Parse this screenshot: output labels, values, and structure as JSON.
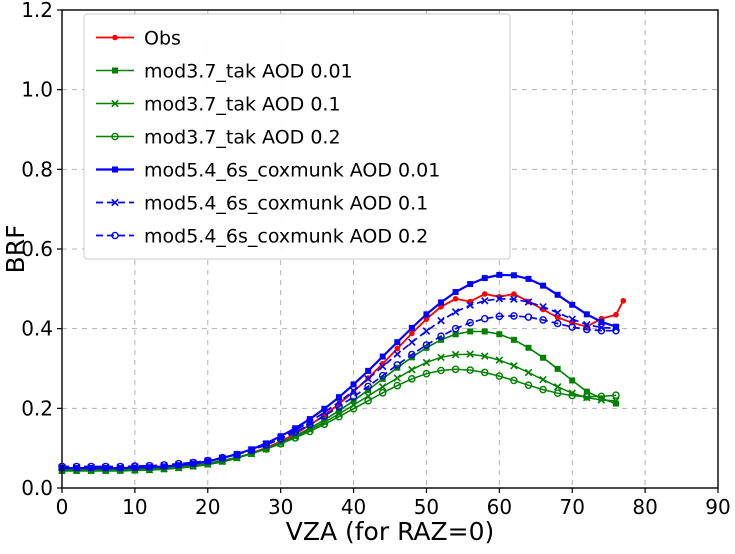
{
  "figure": {
    "background": "#ffffff"
  },
  "chart_data": {
    "type": "line",
    "title": "",
    "xlabel": "VZA (for RAZ=0)",
    "ylabel": "BRF",
    "xlim": [
      0,
      90
    ],
    "ylim": [
      0.0,
      1.2
    ],
    "xticks": [
      0,
      10,
      20,
      30,
      40,
      50,
      60,
      70,
      80,
      90
    ],
    "xtick_labels": [
      "0",
      "10",
      "20",
      "30",
      "40",
      "50",
      "60",
      "70",
      "80",
      "90"
    ],
    "yticks": [
      0.0,
      0.2,
      0.4,
      0.6,
      0.8,
      1.0,
      1.2
    ],
    "ytick_labels": [
      "0.0",
      "0.2",
      "0.4",
      "0.6",
      "0.8",
      "1.0",
      "1.2"
    ],
    "grid": {
      "on": true,
      "style": "dashed",
      "color": "#b3b3b3"
    },
    "legend": {
      "position": "upper-left",
      "border_color": "#cccccc",
      "background": "#ffffff"
    },
    "x_model": [
      0,
      2,
      4,
      6,
      8,
      10,
      12,
      14,
      16,
      18,
      20,
      22,
      24,
      26,
      28,
      30,
      32,
      34,
      36,
      38,
      40,
      42,
      44,
      46,
      48,
      50,
      52,
      54,
      56,
      58,
      60,
      62,
      64,
      66,
      68,
      70,
      72,
      74,
      76
    ],
    "x_obs": [
      0,
      2,
      4,
      6,
      8,
      10,
      12,
      14,
      16,
      18,
      20,
      22,
      24,
      26,
      28,
      30,
      32,
      34,
      36,
      38,
      40,
      42,
      44,
      46,
      48,
      50,
      52,
      54,
      56,
      58,
      60,
      62,
      64,
      66,
      68,
      70,
      72,
      74,
      76,
      77
    ],
    "series": [
      {
        "name": "Obs",
        "color": "#ff0000",
        "linestyle": "solid",
        "marker": "dot",
        "linewidth": 1.8,
        "x_key": "x_obs",
        "y": [
          0.048,
          0.048,
          0.047,
          0.047,
          0.047,
          0.047,
          0.048,
          0.049,
          0.051,
          0.054,
          0.059,
          0.066,
          0.075,
          0.087,
          0.101,
          0.117,
          0.136,
          0.158,
          0.183,
          0.211,
          0.242,
          0.276,
          0.312,
          0.35,
          0.388,
          0.424,
          0.455,
          0.475,
          0.468,
          0.487,
          0.48,
          0.487,
          0.468,
          0.448,
          0.428,
          0.415,
          0.405,
          0.425,
          0.435,
          0.47
        ]
      },
      {
        "name": "mod3.7_tak AOD 0.01",
        "color": "#008000",
        "linestyle": "solid",
        "marker": "square",
        "linewidth": 1.6,
        "x_key": "x_model",
        "y": [
          0.043,
          0.043,
          0.043,
          0.043,
          0.043,
          0.044,
          0.045,
          0.047,
          0.05,
          0.054,
          0.059,
          0.066,
          0.075,
          0.086,
          0.099,
          0.114,
          0.131,
          0.15,
          0.171,
          0.194,
          0.219,
          0.246,
          0.274,
          0.302,
          0.328,
          0.352,
          0.372,
          0.386,
          0.393,
          0.393,
          0.386,
          0.372,
          0.352,
          0.327,
          0.299,
          0.27,
          0.242,
          0.225,
          0.212
        ]
      },
      {
        "name": "mod3.7_tak AOD 0.1",
        "color": "#008000",
        "linestyle": "solid",
        "marker": "x",
        "linewidth": 1.5,
        "x_key": "x_model",
        "y": [
          0.044,
          0.044,
          0.044,
          0.044,
          0.045,
          0.045,
          0.046,
          0.048,
          0.051,
          0.055,
          0.06,
          0.067,
          0.076,
          0.086,
          0.098,
          0.112,
          0.128,
          0.146,
          0.165,
          0.186,
          0.208,
          0.231,
          0.254,
          0.276,
          0.297,
          0.315,
          0.328,
          0.335,
          0.336,
          0.331,
          0.321,
          0.307,
          0.29,
          0.272,
          0.254,
          0.238,
          0.227,
          0.221,
          0.219
        ]
      },
      {
        "name": "mod3.7_tak AOD 0.2",
        "color": "#008000",
        "linestyle": "solid",
        "marker": "circle",
        "linewidth": 1.5,
        "x_key": "x_model",
        "y": [
          0.046,
          0.046,
          0.046,
          0.046,
          0.046,
          0.047,
          0.048,
          0.05,
          0.053,
          0.057,
          0.062,
          0.069,
          0.077,
          0.087,
          0.098,
          0.111,
          0.126,
          0.142,
          0.16,
          0.179,
          0.199,
          0.219,
          0.239,
          0.257,
          0.274,
          0.287,
          0.295,
          0.298,
          0.296,
          0.29,
          0.281,
          0.27,
          0.258,
          0.247,
          0.238,
          0.232,
          0.229,
          0.23,
          0.233
        ]
      },
      {
        "name": "mod5.4_6s_coxmunk AOD 0.01",
        "color": "#0000ff",
        "linestyle": "solid",
        "marker": "square",
        "linewidth": 2.2,
        "x_key": "x_model",
        "y": [
          0.05,
          0.05,
          0.05,
          0.05,
          0.05,
          0.051,
          0.052,
          0.054,
          0.057,
          0.061,
          0.067,
          0.075,
          0.085,
          0.097,
          0.112,
          0.13,
          0.15,
          0.173,
          0.199,
          0.228,
          0.26,
          0.294,
          0.33,
          0.366,
          0.402,
          0.436,
          0.466,
          0.492,
          0.512,
          0.527,
          0.535,
          0.534,
          0.525,
          0.508,
          0.485,
          0.46,
          0.436,
          0.417,
          0.405
        ]
      },
      {
        "name": "mod5.4_6s_coxmunk AOD 0.1",
        "color": "#0000ff",
        "linestyle": "dashed",
        "marker": "x",
        "linewidth": 1.7,
        "x_key": "x_model",
        "y": [
          0.052,
          0.052,
          0.052,
          0.052,
          0.052,
          0.053,
          0.054,
          0.056,
          0.059,
          0.063,
          0.068,
          0.075,
          0.084,
          0.096,
          0.11,
          0.126,
          0.145,
          0.166,
          0.19,
          0.216,
          0.244,
          0.274,
          0.305,
          0.336,
          0.366,
          0.394,
          0.42,
          0.442,
          0.459,
          0.47,
          0.475,
          0.474,
          0.467,
          0.455,
          0.44,
          0.424,
          0.41,
          0.403,
          0.401
        ]
      },
      {
        "name": "mod5.4_6s_coxmunk AOD 0.2",
        "color": "#0000ff",
        "linestyle": "dashed",
        "marker": "circle",
        "linewidth": 1.7,
        "x_key": "x_model",
        "y": [
          0.054,
          0.054,
          0.054,
          0.054,
          0.054,
          0.055,
          0.056,
          0.058,
          0.061,
          0.064,
          0.069,
          0.076,
          0.084,
          0.095,
          0.108,
          0.123,
          0.14,
          0.159,
          0.181,
          0.204,
          0.229,
          0.255,
          0.282,
          0.309,
          0.335,
          0.359,
          0.381,
          0.4,
          0.415,
          0.425,
          0.431,
          0.432,
          0.429,
          0.422,
          0.413,
          0.404,
          0.398,
          0.395,
          0.395
        ]
      }
    ]
  }
}
